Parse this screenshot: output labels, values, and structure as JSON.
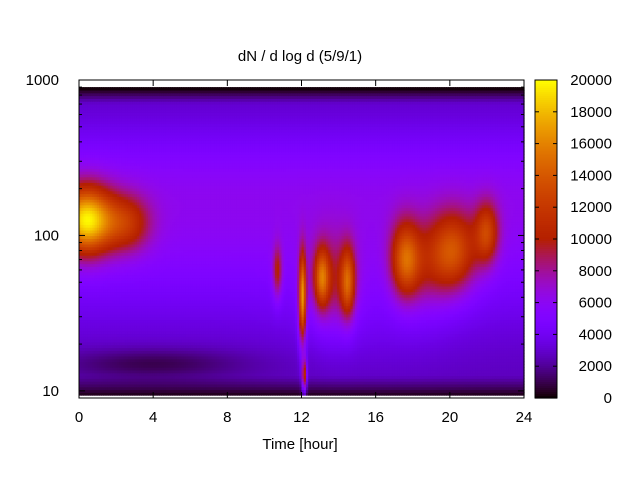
{
  "chart_data": {
    "type": "heatmap",
    "title": "dN / d log d (5/9/1)",
    "xlabel": "Time [hour]",
    "ylabel": "",
    "xlim": [
      0,
      24
    ],
    "ylim": [
      9,
      1000
    ],
    "y_scale": "log",
    "x_ticks": [
      0,
      4,
      8,
      12,
      16,
      20,
      24
    ],
    "x_tick_labels": [
      "0",
      "4",
      "8",
      "12",
      "16",
      "20",
      "24"
    ],
    "y_ticks": [
      10,
      100,
      1000
    ],
    "y_tick_labels": [
      "10",
      "100",
      "1000"
    ],
    "colorbar": {
      "range": [
        0,
        20000
      ],
      "ticks": [
        0,
        2000,
        4000,
        6000,
        8000,
        10000,
        12000,
        14000,
        16000,
        18000,
        20000
      ],
      "tick_labels": [
        "0",
        "2000",
        "4000",
        "6000",
        "8000",
        "10000",
        "12000",
        "14000",
        "16000",
        "18000",
        "20000"
      ],
      "palette": "gnuplot-pm3d"
    },
    "data_time_range_hours": [
      0,
      24
    ],
    "data_diameter_range": [
      9.4,
      900
    ],
    "features": [
      {
        "time": [
          0,
          4.2
        ],
        "diameter_center": 125,
        "peak_value": 19000
      },
      {
        "time": [
          10.5,
          10.9
        ],
        "diameter_center": 58,
        "peak_value": 11500
      },
      {
        "time": [
          11.9,
          12.3
        ],
        "diameter_center": 40,
        "peak_value": 15000
      },
      {
        "time": [
          12.8,
          15.5
        ],
        "diameter_center": 50,
        "peak_value": 12000
      },
      {
        "time": [
          16.5,
          18.5
        ],
        "diameter_center": 68,
        "peak_value": 13000
      },
      {
        "time": [
          19.2,
          22.8
        ],
        "diameter_center": 80,
        "peak_value": 13500
      }
    ],
    "grid": false,
    "legend": "none"
  }
}
